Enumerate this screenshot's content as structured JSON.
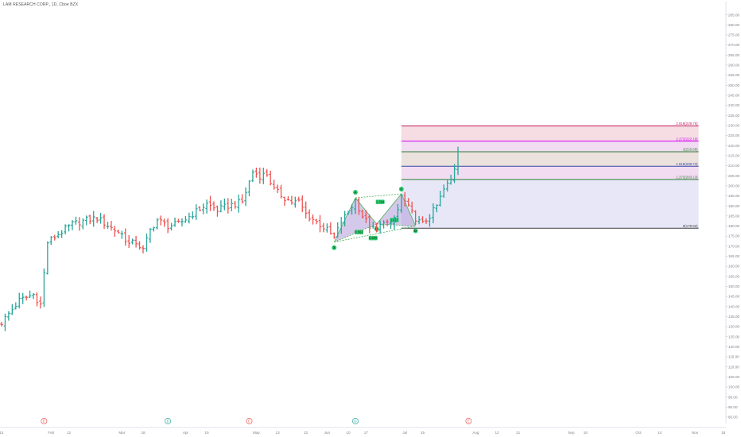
{
  "header": {
    "title": "LAM RESEARCH CORP., 1D, Cboe BZX"
  },
  "colors": {
    "up": "#26a69a",
    "down": "#ef5350",
    "pattern_fill": "#b39ddb",
    "pattern_line": "#4caf50",
    "point_badge": "#2ecc71",
    "grid_axis": "#e0e3eb"
  },
  "chart_data": {
    "type": "ohlc",
    "title": "LAM RESEARCH CORP., 1D, Cboe BZX",
    "xlabel": "",
    "ylabel": "",
    "ylim": [
      85,
      290
    ],
    "y_ticks": [
      85,
      90,
      95,
      100,
      105,
      110,
      115,
      120,
      125,
      130,
      135,
      140,
      145,
      150,
      155,
      160,
      165,
      170,
      175,
      180,
      185,
      190,
      195,
      200,
      205,
      210,
      215,
      220,
      225,
      230,
      235,
      240,
      245,
      250,
      255,
      260,
      265,
      270,
      275,
      280,
      285
    ],
    "y_tick_labels": [
      "85.00",
      "90.00",
      "95.00",
      "100.00",
      "105.00",
      "110.00",
      "115.00",
      "120.00",
      "125.00",
      "130.00",
      "135.00",
      "140.00",
      "145.00",
      "150.00",
      "155.00",
      "160.00",
      "165.00",
      "170.00",
      "175.00",
      "180.00",
      "185.00",
      "190.00",
      "195.00",
      "200.00",
      "205.00",
      "210.00",
      "215.00",
      "220.00",
      "225.00",
      "230.00",
      "235.00",
      "240.00",
      "245.00",
      "250.00",
      "255.00",
      "260.00",
      "265.00",
      "270.00",
      "275.00",
      "280.00",
      "285.00"
    ],
    "x_tick_labels": [
      "14",
      "Feb",
      "12",
      "Mar",
      "18",
      "Apr",
      "15",
      "May",
      "13",
      "22",
      "Jun",
      "10",
      "17",
      "Jul",
      "15",
      "Aug",
      "12",
      "21",
      "Sep",
      "16",
      "Oct",
      "14",
      "Nov",
      "18"
    ],
    "x_tick_index": [
      0,
      14,
      19,
      34,
      40,
      52,
      58,
      72,
      78,
      86,
      92,
      98,
      103,
      114,
      119,
      134,
      140,
      146,
      161,
      165,
      180,
      186,
      196,
      204
    ],
    "close_trace": [
      {
        "i": 0,
        "v": 132
      },
      {
        "i": 5,
        "v": 143
      },
      {
        "i": 9,
        "v": 146
      },
      {
        "i": 11,
        "v": 141
      },
      {
        "i": 13,
        "v": 172
      },
      {
        "i": 16,
        "v": 176
      },
      {
        "i": 20,
        "v": 181
      },
      {
        "i": 24,
        "v": 183
      },
      {
        "i": 27,
        "v": 184
      },
      {
        "i": 31,
        "v": 179
      },
      {
        "i": 34,
        "v": 176
      },
      {
        "i": 36,
        "v": 171
      },
      {
        "i": 38,
        "v": 172
      },
      {
        "i": 40,
        "v": 168
      },
      {
        "i": 42,
        "v": 178
      },
      {
        "i": 44,
        "v": 183
      },
      {
        "i": 47,
        "v": 180
      },
      {
        "i": 50,
        "v": 181
      },
      {
        "i": 54,
        "v": 186
      },
      {
        "i": 58,
        "v": 191
      },
      {
        "i": 61,
        "v": 188
      },
      {
        "i": 64,
        "v": 190
      },
      {
        "i": 68,
        "v": 192
      },
      {
        "i": 71,
        "v": 207
      },
      {
        "i": 73,
        "v": 205
      },
      {
        "i": 75,
        "v": 206
      },
      {
        "i": 77,
        "v": 198
      },
      {
        "i": 80,
        "v": 194
      },
      {
        "i": 82,
        "v": 192
      },
      {
        "i": 84,
        "v": 192
      },
      {
        "i": 86,
        "v": 186
      },
      {
        "i": 89,
        "v": 182
      },
      {
        "i": 92,
        "v": 178
      },
      {
        "i": 94,
        "v": 174
      },
      {
        "i": 96,
        "v": 182
      },
      {
        "i": 98,
        "v": 187
      },
      {
        "i": 100,
        "v": 193
      },
      {
        "i": 102,
        "v": 185
      },
      {
        "i": 104,
        "v": 180
      },
      {
        "i": 106,
        "v": 177
      },
      {
        "i": 108,
        "v": 183
      },
      {
        "i": 110,
        "v": 180
      },
      {
        "i": 112,
        "v": 188
      },
      {
        "i": 113,
        "v": 195
      },
      {
        "i": 115,
        "v": 189
      },
      {
        "i": 117,
        "v": 184
      },
      {
        "i": 118,
        "v": 182
      },
      {
        "i": 119,
        "v": 181
      },
      {
        "i": 121,
        "v": 185
      },
      {
        "i": 123,
        "v": 190
      },
      {
        "i": 125,
        "v": 198
      },
      {
        "i": 127,
        "v": 203
      },
      {
        "i": 128,
        "v": 209
      },
      {
        "i": 129,
        "v": 218
      }
    ],
    "fib_levels": [
      {
        "label": "2.618(229.76)",
        "value": 229.76,
        "color": "#c2185b"
      },
      {
        "label": "2.272(222.19)",
        "value": 222.19,
        "color": "#d500f9"
      },
      {
        "label": "2(216.95)",
        "value": 216.95,
        "color": "#2e7d32"
      },
      {
        "label": "1.618(209.73)",
        "value": 209.73,
        "color": "#3949ab"
      },
      {
        "label": "1.272(203.13)",
        "value": 203.13,
        "color": "#2e7d32"
      },
      {
        "label": "0(178.92)",
        "value": 178.92,
        "color": "#424242"
      }
    ],
    "fib_start_index": 113,
    "fib_end_index": 197,
    "harmonic_pattern": {
      "points": [
        {
          "name": "X",
          "i": 94,
          "v": 172
        },
        {
          "name": "A",
          "i": 100,
          "v": 194
        },
        {
          "name": "B",
          "i": 106,
          "v": 181
        },
        {
          "name": "C",
          "i": 113,
          "v": 196
        },
        {
          "name": "D",
          "i": 117,
          "v": 180
        }
      ],
      "ratios": [
        {
          "text": "0.562",
          "i": 101,
          "v": 177
        },
        {
          "text": "0.639",
          "i": 105,
          "v": 174
        },
        {
          "text": "1.364",
          "i": 107,
          "v": 192
        },
        {
          "text": "1.011",
          "i": 111,
          "v": 183
        }
      ]
    },
    "events": [
      {
        "label": "E",
        "i": 12,
        "color": "#ef5350"
      },
      {
        "label": "D",
        "i": 47,
        "color": "#26a69a"
      },
      {
        "label": "E",
        "i": 70,
        "color": "#ef5350"
      },
      {
        "label": "D",
        "i": 100,
        "color": "#26a69a"
      },
      {
        "label": "E",
        "i": 132,
        "color": "#ef5350"
      }
    ]
  }
}
